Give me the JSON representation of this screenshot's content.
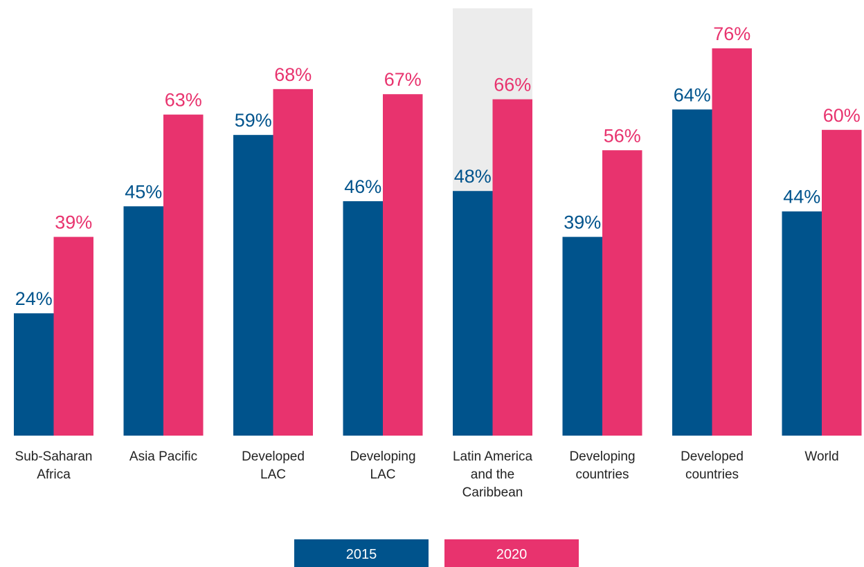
{
  "chart_data": {
    "type": "bar",
    "categories": [
      "Sub-Saharan\nAfrica",
      "Asia Pacific",
      "Developed\nLAC",
      "Developing\nLAC",
      "Latin America\nand the\nCaribbean",
      "Developing\ncountries",
      "Developed\ncountries",
      "World"
    ],
    "series": [
      {
        "name": "2015",
        "color": "#00538c",
        "values": [
          24,
          45,
          59,
          46,
          48,
          39,
          64,
          44
        ],
        "value_labels": [
          "24%",
          "45%",
          "59%",
          "46%",
          "48%",
          "39%",
          "64%",
          "44%"
        ]
      },
      {
        "name": "2020",
        "color": "#e8336e",
        "values": [
          39,
          63,
          68,
          67,
          66,
          56,
          76,
          60
        ],
        "value_labels": [
          "39%",
          "63%",
          "68%",
          "67%",
          "66%",
          "56%",
          "76%",
          "60%"
        ]
      }
    ],
    "highlight": 4,
    "highlight_color": "#ececec",
    "legend": "bottom"
  }
}
